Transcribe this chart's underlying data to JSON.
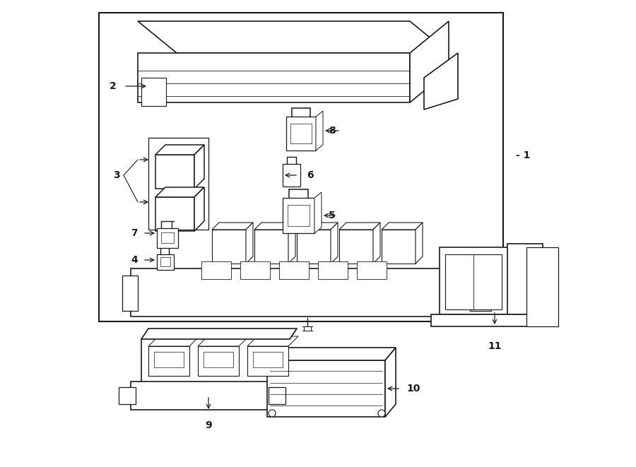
{
  "bg_color": "#ffffff",
  "line_color": "#1a1a1a",
  "fig_width": 9.0,
  "fig_height": 6.61,
  "dpi": 100,
  "xlim": [
    0,
    900
  ],
  "ylim": [
    0,
    661
  ]
}
